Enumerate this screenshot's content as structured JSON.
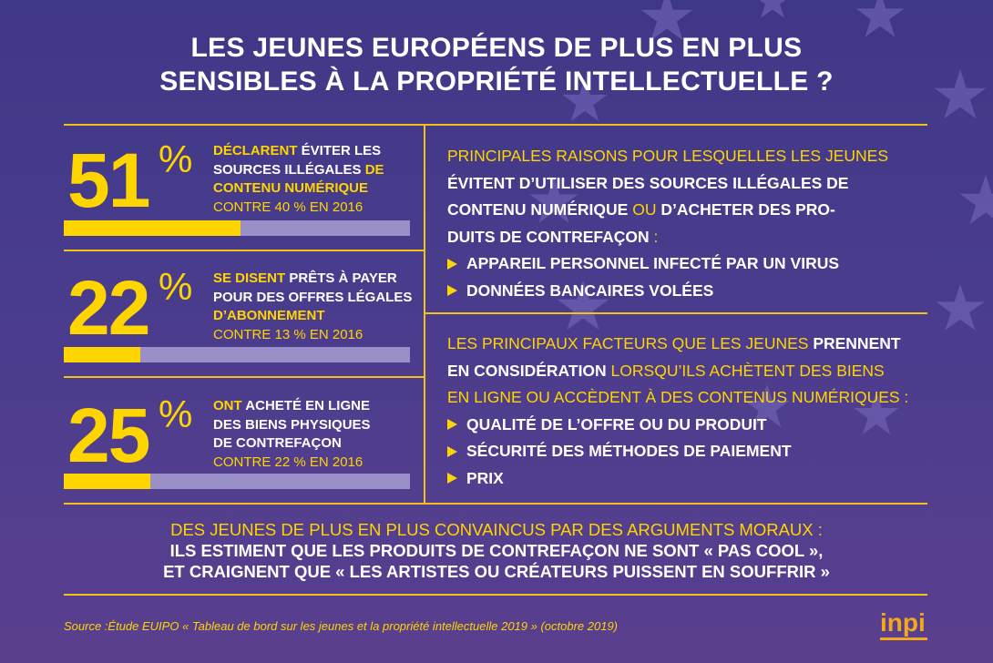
{
  "title": {
    "line1": "LES JEUNES EUROPÉENS DE PLUS EN PLUS",
    "line2": "SENSIBLES À LA PROPRIÉTÉ INTELLECTUELLE ?"
  },
  "stats": [
    {
      "value": "51",
      "unit": "%",
      "line1_hl": "DÉCLARENT",
      "line1_rest": " ÉVITER LES",
      "line2_a": "SOURCES ILLÉGALES ",
      "line2_hl": "DE",
      "line3": "CONTENU NUMÉRIQUE",
      "comparison": "CONTRE 40 % EN 2016",
      "progress": 0.51
    },
    {
      "value": "22",
      "unit": "%",
      "line1_hl": "SE DISENT",
      "line1_rest": " PRÊTS À PAYER",
      "line2": "POUR DES OFFRES LÉGALES",
      "line3_hl": "D’ABONNEMENT",
      "comparison": "CONTRE 13 % EN 2016",
      "progress": 0.22
    },
    {
      "value": "25",
      "unit": "%",
      "line1_hl": "ONT",
      "line1_rest": " ACHETÉ EN LIGNE",
      "line2": "DES BIENS PHYSIQUES",
      "line3": "DE CONTREFAÇON",
      "comparison": "CONTRE 22 % EN 2016",
      "progress": 0.25
    }
  ],
  "reasons": {
    "intro_y": "PRINCIPALES RAISONS POUR LESQUELLES LES JEUNES",
    "line2": "ÉVITENT D’UTILISER DES SOURCES ILLÉGALES DE",
    "line3_a": "CONTENU NUMÉRIQUE ",
    "line3_y": "OU",
    "line3_b": " D’ACHETER DES PRO-",
    "line4_a": "DUITS DE CONTREFAÇON",
    "line4_y": " :",
    "bullets": [
      "APPAREIL PERSONNEL INFECTÉ PAR UN VIRUS",
      "DONNÉES BANCAIRES VOLÉES"
    ]
  },
  "factors": {
    "line1_y": "LES PRINCIPAUX FACTEURS QUE LES JEUNES ",
    "line1_w": "PRENNENT",
    "line2_w": "EN CONSIDÉRATION",
    "line2_y": " LORSQU’ILS ACHÈTENT DES BIENS",
    "line3_y": "EN LIGNE OU ACCÈDENT À DES CONTENUS NUMÉRIQUES :",
    "bullets": [
      "QUALITÉ DE L’OFFRE OU DU PRODUIT",
      "SÉCURITÉ DES MÉTHODES DE PAIEMENT",
      "PRIX"
    ]
  },
  "bottom": {
    "line1_y": "DES JEUNES DE PLUS EN PLUS CONVAINCUS PAR DES ARGUMENTS MORAUX :",
    "line2": "ILS ESTIMENT QUE LES PRODUITS DE CONTREFAÇON NE SONT « PAS COOL »,",
    "line3": "ET CRAIGNENT QUE « LES ARTISTES OU CRÉATEURS PUISSENT EN SOUFFRIR »"
  },
  "source": "Source :Étude EUIPO « Tableau de bord sur les jeunes et la propriété intellectuelle 2019 » (octobre 2019)",
  "logo": "inpi",
  "colors": {
    "accent": "#ffd500",
    "background": "#45398a",
    "bar_track": "#9a8fc7",
    "logo": "#f2a81a"
  }
}
